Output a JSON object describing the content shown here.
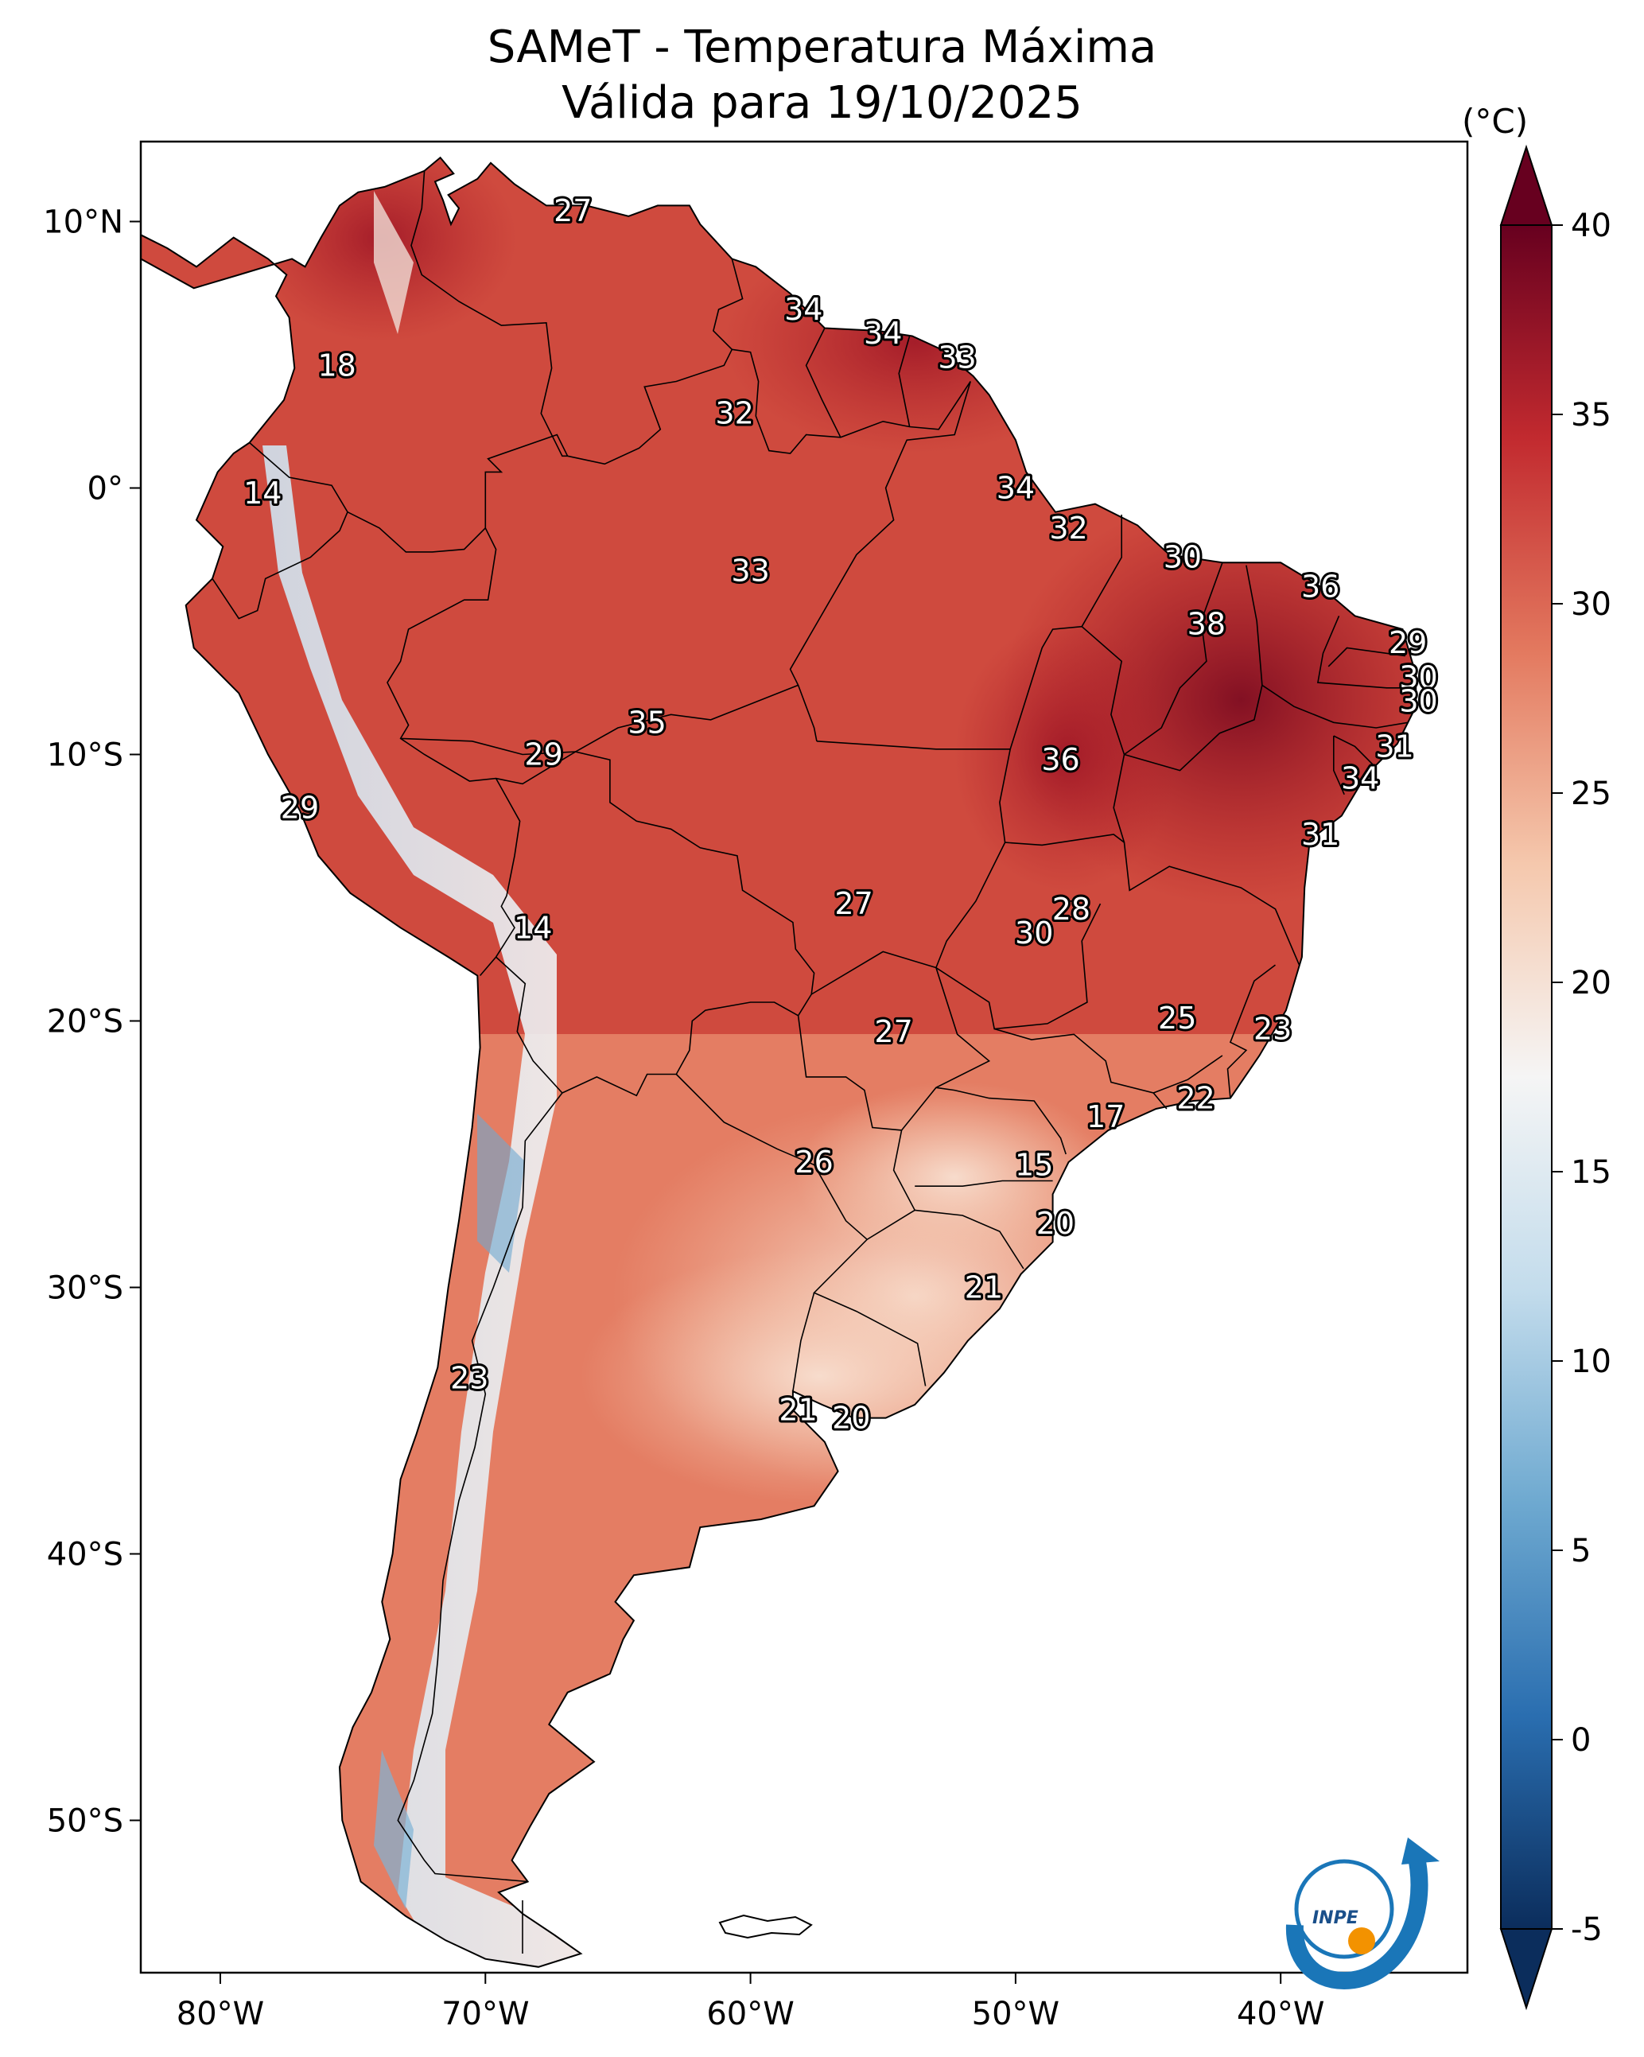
{
  "title": {
    "line1": "SAMeT - Temperatura Máxima",
    "line2": "Válida para 19/10/2025"
  },
  "colorbar": {
    "unit": "(°C)",
    "ticks": [
      "40",
      "35",
      "30",
      "25",
      "20",
      "15",
      "10",
      "5",
      "0",
      "-5"
    ],
    "min": -5,
    "max": 40,
    "colors": [
      "#0b2d5c",
      "#2a6eb0",
      "#6ea9d0",
      "#c3dcec",
      "#f5f5f5",
      "#f5c8ad",
      "#e3795f",
      "#c22a2f",
      "#67001f"
    ]
  },
  "axes": {
    "lon_labels": [
      "80°W",
      "70°W",
      "60°W",
      "50°W",
      "40°W"
    ],
    "lat_labels": [
      "10°N",
      "0°",
      "10°S",
      "20°S",
      "30°S",
      "40°S",
      "50°S"
    ]
  },
  "stations": [
    {
      "lon": -66.7,
      "lat": 10.4,
      "value": "27"
    },
    {
      "lon": -75.6,
      "lat": 4.6,
      "value": "18"
    },
    {
      "lon": -78.4,
      "lat": -0.2,
      "value": "14"
    },
    {
      "lon": -58.0,
      "lat": 6.7,
      "value": "34"
    },
    {
      "lon": -55.0,
      "lat": 5.8,
      "value": "34"
    },
    {
      "lon": -52.2,
      "lat": 4.9,
      "value": "33"
    },
    {
      "lon": -60.6,
      "lat": 2.8,
      "value": "32"
    },
    {
      "lon": -50.0,
      "lat": 0.0,
      "value": "34"
    },
    {
      "lon": -48.0,
      "lat": -1.5,
      "value": "32"
    },
    {
      "lon": -43.7,
      "lat": -2.6,
      "value": "30"
    },
    {
      "lon": -60.0,
      "lat": -3.1,
      "value": "33"
    },
    {
      "lon": -38.5,
      "lat": -3.7,
      "value": "36"
    },
    {
      "lon": -42.8,
      "lat": -5.1,
      "value": "38"
    },
    {
      "lon": -35.2,
      "lat": -5.8,
      "value": "29"
    },
    {
      "lon": -34.8,
      "lat": -7.1,
      "value": "30"
    },
    {
      "lon": -34.8,
      "lat": -8.0,
      "value": "30"
    },
    {
      "lon": -63.9,
      "lat": -8.8,
      "value": "35"
    },
    {
      "lon": -67.8,
      "lat": -10.0,
      "value": "29"
    },
    {
      "lon": -35.7,
      "lat": -9.7,
      "value": "31"
    },
    {
      "lon": -48.3,
      "lat": -10.2,
      "value": "36"
    },
    {
      "lon": -37.0,
      "lat": -10.9,
      "value": "34"
    },
    {
      "lon": -77.0,
      "lat": -12.0,
      "value": "29"
    },
    {
      "lon": -38.5,
      "lat": -13.0,
      "value": "31"
    },
    {
      "lon": -56.1,
      "lat": -15.6,
      "value": "27"
    },
    {
      "lon": -47.9,
      "lat": -15.8,
      "value": "28"
    },
    {
      "lon": -49.3,
      "lat": -16.7,
      "value": "30"
    },
    {
      "lon": -68.2,
      "lat": -16.5,
      "value": "14"
    },
    {
      "lon": -43.9,
      "lat": -19.9,
      "value": "25"
    },
    {
      "lon": -40.3,
      "lat": -20.3,
      "value": "23"
    },
    {
      "lon": -54.6,
      "lat": -20.4,
      "value": "27"
    },
    {
      "lon": -43.2,
      "lat": -22.9,
      "value": "22"
    },
    {
      "lon": -46.6,
      "lat": -23.6,
      "value": "17"
    },
    {
      "lon": -57.6,
      "lat": -25.3,
      "value": "26"
    },
    {
      "lon": -49.3,
      "lat": -25.4,
      "value": "15"
    },
    {
      "lon": -48.5,
      "lat": -27.6,
      "value": "20"
    },
    {
      "lon": -51.2,
      "lat": -30.0,
      "value": "21"
    },
    {
      "lon": -70.6,
      "lat": -33.4,
      "value": "23"
    },
    {
      "lon": -58.2,
      "lat": -34.6,
      "value": "21"
    },
    {
      "lon": -56.2,
      "lat": -34.9,
      "value": "20"
    }
  ],
  "logo": {
    "text": "INPE"
  }
}
